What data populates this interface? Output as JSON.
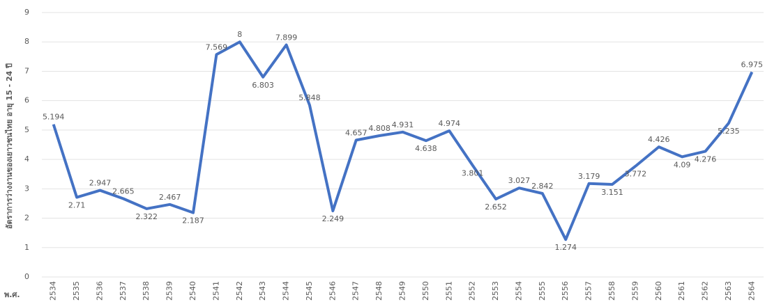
{
  "chart_data": {
    "type": "line",
    "y_label": "อัตราการว่างงานของเยาวชนไทย อายุ 15 - 24 ปี",
    "x_label": "พ.ศ.",
    "categories": [
      "2534",
      "2535",
      "2536",
      "2537",
      "2538",
      "2539",
      "2540",
      "2541",
      "2542",
      "2543",
      "2544",
      "2545",
      "2546",
      "2547",
      "2548",
      "2549",
      "2550",
      "2551",
      "2552",
      "2553",
      "2554",
      "2555",
      "2556",
      "2557",
      "2558",
      "2559",
      "2560",
      "2561",
      "2562",
      "2563",
      "2564"
    ],
    "values": [
      5.194,
      2.71,
      2.947,
      2.665,
      2.322,
      2.467,
      2.187,
      7.569,
      8,
      6.803,
      7.899,
      5.848,
      2.249,
      4.657,
      4.808,
      4.931,
      4.638,
      4.974,
      3.801,
      2.652,
      3.027,
      2.842,
      1.274,
      3.179,
      3.151,
      3.772,
      4.426,
      4.09,
      4.276,
      5.235,
      6.975
    ],
    "color": "#4472c4",
    "ylim": [
      0,
      9
    ],
    "yticks": [
      0,
      1,
      2,
      3,
      4,
      5,
      6,
      7,
      8,
      9
    ],
    "grid": true
  }
}
